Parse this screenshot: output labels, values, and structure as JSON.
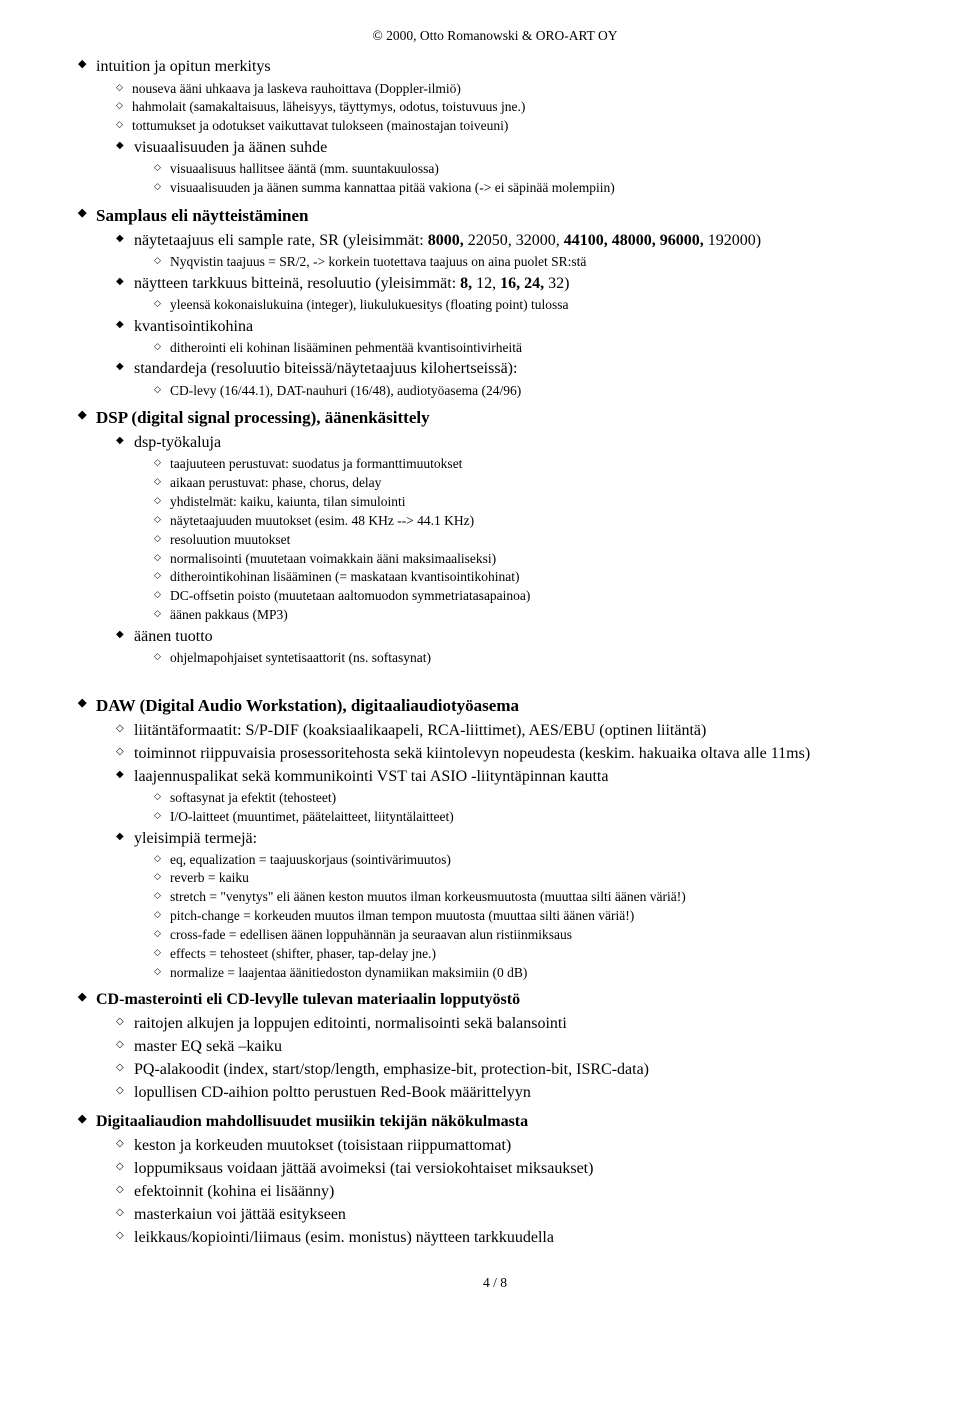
{
  "header": "© 2000, Otto Romanowski & ORO-ART OY",
  "footer": "4 / 8",
  "sec1": {
    "title": "intuition ja opitun merkitys",
    "items": [
      "nouseva ääni uhkaava ja laskeva rauhoittava (Doppler-ilmiö)",
      "hahmolait (samakaltaisuus, läheisyys, täyttymys, odotus, toistuvuus jne.)",
      "tottumukset ja odotukset vaikuttavat tulokseen (mainostajan toiveuni)"
    ],
    "sub1": {
      "label": "visuaalisuuden ja äänen suhde",
      "items": [
        "visuaalisuus hallitsee ääntä (mm. suuntakuulossa)",
        "visuaalisuuden ja äänen summa kannattaa pitää vakiona (-> ei säpinää molempiin)"
      ]
    }
  },
  "sec2": {
    "title": "Samplaus eli näytteistäminen",
    "b1": {
      "title_html": "näytetaajuus eli sample rate, SR (yleisimmät: <b>8000,</b> 22050, 32000, <b>44100, 48000, 96000,</b> 192000)",
      "items": [
        "Nyqvistin taajuus = SR/2, -> korkein tuotettava taajuus on aina puolet SR:stä"
      ]
    },
    "b2": {
      "title_html": "näytteen tarkkuus bitteinä, resoluutio (yleisimmät: <b>8,</b> 12, <b>16, 24,</b> 32)",
      "items": [
        "yleensä kokonaislukuina (integer), liukulukuesitys (floating point) tulossa"
      ]
    },
    "b3": {
      "title": "kvantisointikohina",
      "items": [
        "ditherointi eli kohinan lisääminen pehmentää kvantisointivirheitä"
      ]
    },
    "b4": {
      "title": "standardeja (resoluutio biteissä/näytetaajuus kilohertseissä):",
      "items": [
        "CD-levy (16/44.1), DAT-nauhuri (16/48), audiotyöasema (24/96)"
      ]
    }
  },
  "sec3": {
    "title": "DSP (digital signal processing), äänenkäsittely",
    "b1": {
      "title": "dsp-työkaluja",
      "items": [
        "taajuuteen perustuvat: suodatus ja formanttimuutokset",
        "aikaan perustuvat: phase, chorus, delay",
        "yhdistelmät: kaiku, kaiunta, tilan simulointi",
        "näytetaajuuden muutokset (esim. 48 KHz --> 44.1 KHz)",
        "resoluution muutokset",
        "normalisointi (muutetaan voimakkain ääni  maksimaaliseksi)",
        "ditherointikohinan lisääminen (= maskataan kvantisointikohinat)",
        "DC-offsetin poisto (muutetaan aaltomuodon symmetriatasapainoa)",
        "äänen pakkaus (MP3)"
      ]
    },
    "b2": {
      "title": "äänen tuotto",
      "items": [
        "ohjelmapohjaiset syntetisaattorit (ns. softasynat)"
      ]
    }
  },
  "sec4": {
    "title": "DAW (Digital Audio Workstation), digitaaliaudiotyöasema",
    "d": [
      "liitäntäformaatit: S/P-DIF (koaksiaalikaapeli, RCA-liittimet), AES/EBU (optinen liitäntä)",
      "toiminnot riippuvaisia prosessoritehosta sekä kiintolevyn nopeudesta (keskim. hakuaika oltava alle 11ms)"
    ],
    "b1": {
      "title": "laajennuspalikat sekä kommunikointi VST tai ASIO -liityntäpinnan kautta",
      "items": [
        "softasynat ja efektit (tehosteet)",
        "I/O-laitteet (muuntimet, päätelaitteet, liityntälaitteet)"
      ]
    },
    "b2": {
      "title": "yleisimpiä termejä:",
      "items": [
        "eq, equalization = taajuuskorjaus (sointivärimuutos)",
        "reverb = kaiku",
        "stretch = \"venytys\" eli äänen keston muutos ilman korkeusmuutosta (muuttaa silti äänen väriä!)",
        "pitch-change = korkeuden muutos ilman tempon muutosta (muuttaa silti äänen väriä!)",
        "cross-fade = edellisen äänen loppuhännän ja seuraavan alun ristiinmiksaus",
        "effects = tehosteet (shifter, phaser, tap-delay jne.)",
        "normalize = laajentaa äänitiedoston dynamiikan maksimiin (0 dB)"
      ]
    }
  },
  "sec5": {
    "title": "CD-masterointi eli CD-levylle tulevan materiaalin lopputyöstö",
    "d": [
      "raitojen alkujen ja loppujen editointi, normalisointi sekä balansointi",
      "master EQ sekä –kaiku",
      "PQ-alakoodit (index, start/stop/length, emphasize-bit, protection-bit, ISRC-data)",
      "lopullisen CD-aihion poltto perustuen Red-Book määrittelyyn"
    ]
  },
  "sec6": {
    "title": "Digitaaliaudion mahdollisuudet musiikin tekijän näkökulmasta",
    "d": [
      "keston ja korkeuden muutokset (toisistaan riippumattomat)",
      "loppumiksaus voidaan jättää avoimeksi (tai versiokohtaiset miksaukset)",
      "efektoinnit (kohina ei lisäänny)",
      "masterkaiun voi jättää esitykseen",
      "leikkaus/kopiointi/liimaus (esim. monistus) näytteen tarkkuudella"
    ]
  }
}
